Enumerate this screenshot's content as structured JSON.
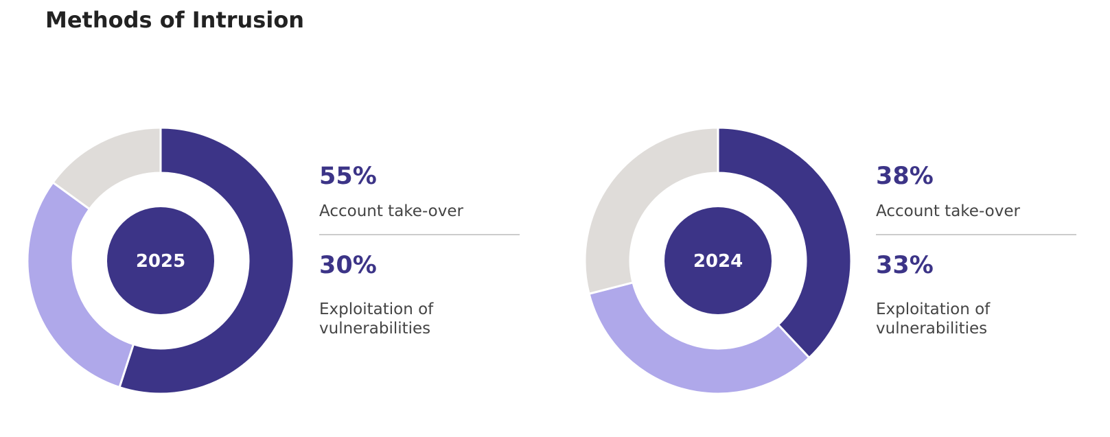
{
  "title": "Methods of Intrusion",
  "colors": {
    "account_takeover": "#3c3487",
    "exploitation": "#afa8ea",
    "other": "#dfdcd9",
    "center": "#3c3487",
    "stat_text": "#3c3487"
  },
  "chart_data": [
    {
      "type": "pie",
      "center_label": "2025",
      "categories": [
        "Account take-over",
        "Exploitation of vulnerabilities",
        ""
      ],
      "values": [
        55,
        30,
        15
      ],
      "stats": [
        {
          "value": "55%",
          "label": "Account take-over"
        },
        {
          "value": "30%",
          "label": "Exploitation of vulnerabilities"
        }
      ]
    },
    {
      "type": "pie",
      "center_label": "2024",
      "categories": [
        "Account take-over",
        "Exploitation of vulnerabilities",
        ""
      ],
      "values": [
        38,
        33,
        29
      ],
      "stats": [
        {
          "value": "38%",
          "label": "Account take-over"
        },
        {
          "value": "33%",
          "label": "Exploitation of vulnerabilities"
        }
      ]
    }
  ]
}
